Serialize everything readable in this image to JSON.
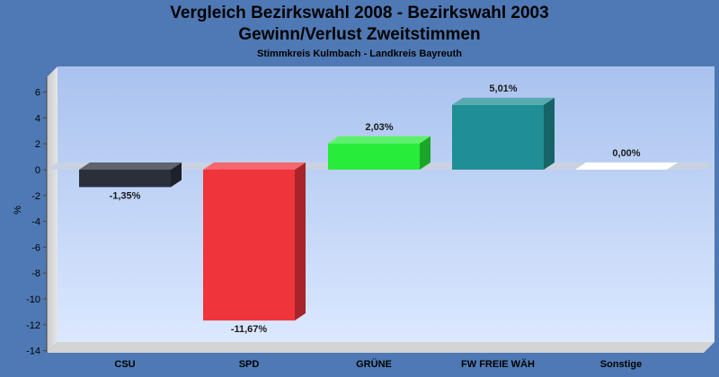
{
  "chart_data": {
    "type": "bar",
    "title": "Vergleich Bezirkswahl 2008 - Bezirkswahl 2003",
    "subtitle": "Gewinn/Verlust Zweitstimmen",
    "caption": "Stimmkreis Kulmbach - Landkreis Bayreuth",
    "ylabel": "%",
    "xlabel": "",
    "ylim": [
      -14,
      7
    ],
    "yticks": [
      6,
      4,
      2,
      0,
      -2,
      -4,
      -6,
      -8,
      -10,
      -12,
      -14
    ],
    "grid": false,
    "categories": [
      "CSU",
      "SPD",
      "GRÜNE",
      "FW FREIE WÄH",
      "Sonstige"
    ],
    "values": [
      -1.35,
      -11.67,
      2.03,
      5.01,
      0.0
    ],
    "value_labels": [
      "-1,35%",
      "-11,67%",
      "2,03%",
      "5,01%",
      "0,00%"
    ],
    "colors": [
      "#2a2f3a",
      "#f0343c",
      "#27ec3a",
      "#1f8e95",
      "#ffffff"
    ]
  }
}
